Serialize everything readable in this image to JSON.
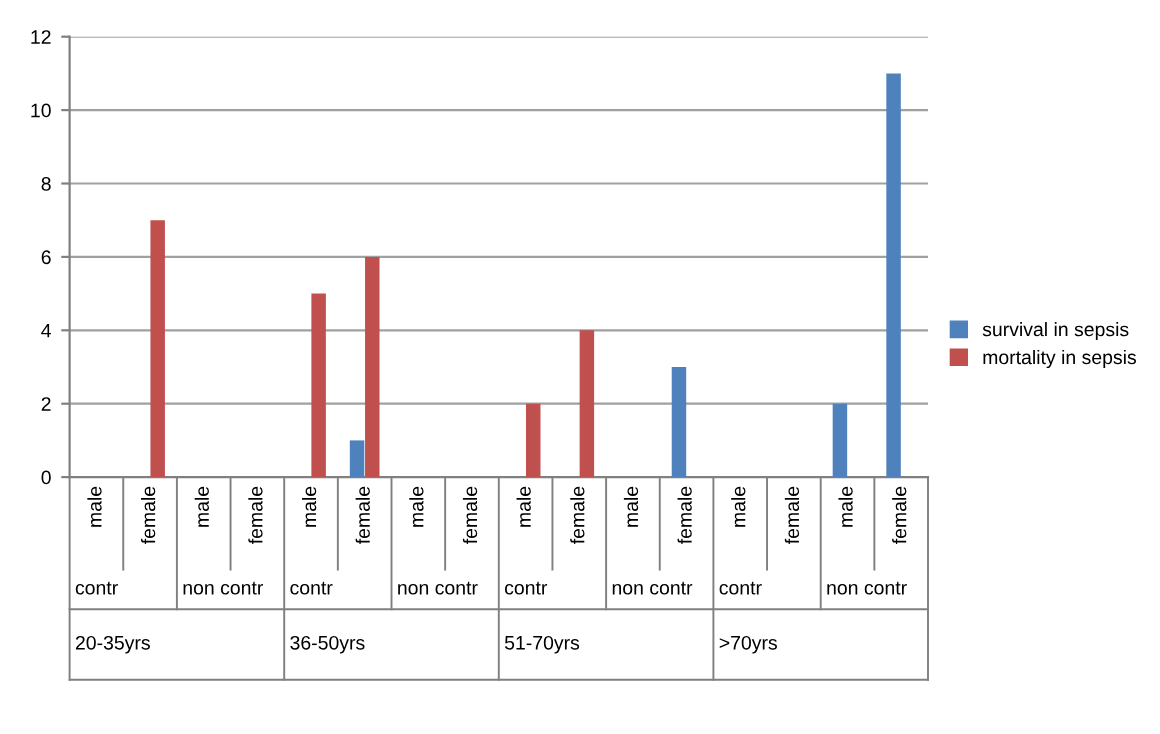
{
  "chart_data": {
    "type": "bar",
    "categories": [
      "male",
      "female",
      "male",
      "female",
      "male",
      "female",
      "male",
      "female",
      "male",
      "female",
      "male",
      "female",
      "male",
      "female",
      "male",
      "female"
    ],
    "series": [
      {
        "name": "survival in sepsis",
        "color": "#4f81bd",
        "values": [
          null,
          null,
          null,
          null,
          null,
          1,
          null,
          null,
          null,
          null,
          null,
          3,
          null,
          null,
          2,
          11
        ]
      },
      {
        "name": "mortality in sepsis",
        "color": "#c0504d",
        "values": [
          null,
          7,
          null,
          null,
          5,
          6,
          null,
          null,
          2,
          4,
          null,
          null,
          null,
          null,
          null,
          null
        ]
      }
    ],
    "annotations": [
      "contr",
      "non contr",
      "contr",
      "non contr",
      "contr",
      "non contr",
      "contr",
      "non contr",
      "20-35yrs",
      "36-50yrs",
      "51-70yrs",
      ">70yrs"
    ],
    "ylim": [
      0,
      12
    ],
    "yticks": [
      0,
      2,
      4,
      6,
      8,
      10,
      12
    ],
    "grid": "y",
    "legend": "right"
  }
}
